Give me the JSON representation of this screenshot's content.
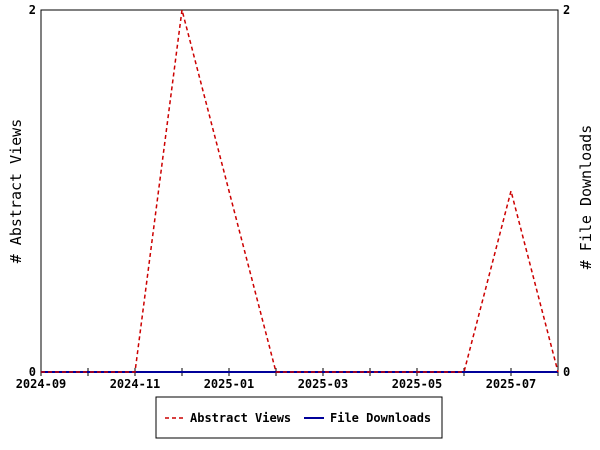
{
  "chart_data": {
    "type": "line",
    "x": [
      "2024-09",
      "2024-10",
      "2024-11",
      "2024-12",
      "2025-01",
      "2025-02",
      "2025-03",
      "2025-04",
      "2025-05",
      "2025-06",
      "2025-07",
      "2025-08"
    ],
    "x_ticks": [
      "2024-09",
      "2024-11",
      "2025-01",
      "2025-03",
      "2025-05",
      "2025-07"
    ],
    "series": [
      {
        "name": "Abstract Views",
        "axis": "left",
        "color": "#cc0000",
        "style": "dashed",
        "values": [
          0,
          0,
          0,
          2,
          1,
          0,
          0,
          0,
          0,
          0,
          1,
          0
        ]
      },
      {
        "name": "File Downloads",
        "axis": "right",
        "color": "#000099",
        "style": "solid",
        "values": [
          0,
          0,
          0,
          0,
          0,
          0,
          0,
          0,
          0,
          0,
          0,
          0
        ]
      }
    ],
    "ylabel_left": "# Abstract Views",
    "ylabel_right": "# File Downloads",
    "ylim_left": [
      0,
      2
    ],
    "ylim_right": [
      0,
      2
    ],
    "yticks_left": [
      "0",
      "2"
    ],
    "yticks_right": [
      "0",
      "2"
    ],
    "legend_position": "bottom"
  }
}
